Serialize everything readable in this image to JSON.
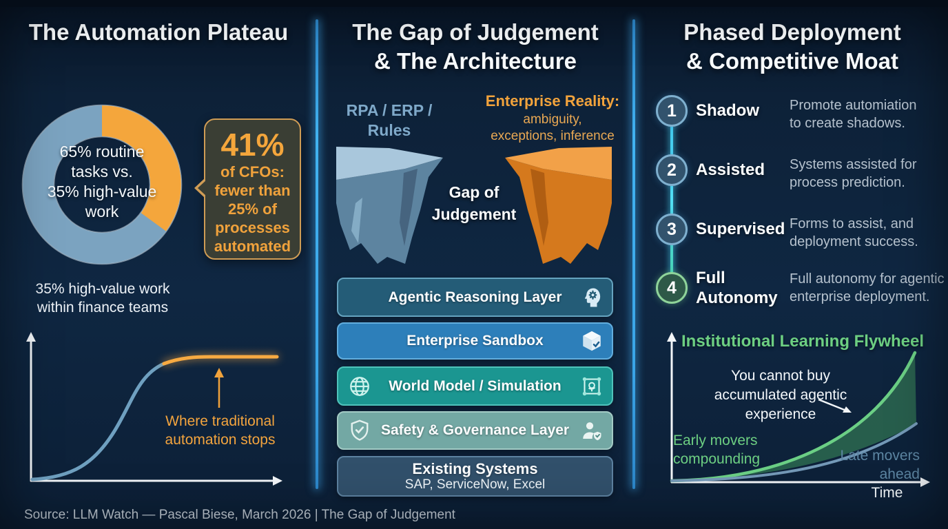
{
  "col1": {
    "title": "The Automation Plateau",
    "donut": {
      "center_label": "65% routine\ntasks vs.\n35% high-value\nwork",
      "caption": "35% high-value work\nwithin finance teams"
    },
    "callout": {
      "big": "41%",
      "rest": "of CFOs:\nfewer than\n25% of\nprocesses\nautomated"
    },
    "scurve_annotation": "Where traditional\nautomation stops"
  },
  "col2": {
    "title": "The Gap of Judgement\n& The Architecture",
    "left_cliff_label": "RPA / ERP /\nRules",
    "right_cliff_title": "Enterprise Reality:",
    "right_cliff_sub": "ambiguity,\nexceptions, inference",
    "gap_label": "Gap of\nJudgement",
    "layers": [
      {
        "label": "Agentic Reasoning Layer",
        "icon_right": "head-gear-icon"
      },
      {
        "label": "Enterprise Sandbox",
        "icon_right": "cube-check-icon"
      },
      {
        "label": "World Model / Simulation",
        "icon_left": "globe-icon",
        "icon_right": "simulation-box-icon"
      },
      {
        "label": "Safety & Governance Layer",
        "icon_left": "shield-check-icon",
        "icon_right": "user-shield-icon"
      },
      {
        "label": "Existing Systems",
        "sub": "SAP, ServiceNow, Excel"
      }
    ]
  },
  "col3": {
    "title": "Phased Deployment\n& Competitive Moat",
    "phases": [
      {
        "num": "1",
        "label": "Shadow",
        "desc": "Promote automiation\nto create shadows."
      },
      {
        "num": "2",
        "label": "Assisted",
        "desc": "Systems assisted for\nprocess prediction."
      },
      {
        "num": "3",
        "label": "Supervised",
        "desc": "Forms to assist, and\ndeployment success."
      },
      {
        "num": "4",
        "label": "Full\nAutonomy",
        "desc": "Full autonomy for agentic\nenterprise deployment."
      }
    ],
    "flywheel": {
      "title": "Institutional Learning Flywheel",
      "annotation": "You cannot buy\naccumulated agentic\nexperience",
      "early_label": "Early movers\ncompounding",
      "late_label": "Late movers\nahead",
      "xlabel": "Time"
    }
  },
  "footer": {
    "source": "Source: LLM Watch — Pascal Biese, March 2026 | The Gap of Judgement"
  },
  "chart_data": [
    {
      "id": "task-split-donut",
      "type": "pie",
      "labels": [
        "Routine tasks",
        "High-value work"
      ],
      "values": [
        65,
        35
      ],
      "colors": [
        "#7ba3c0",
        "#f4a63c"
      ],
      "center_label": "65% routine tasks vs. 35% high-value work",
      "caption": "35% high-value work within finance teams",
      "legend_position": "none"
    },
    {
      "id": "automation-s-curve",
      "type": "line",
      "title": "",
      "xlabel": "",
      "ylabel": "",
      "series": [
        {
          "name": "Automation progress (sigmoid)",
          "color": "#6fa0c0",
          "shape": "s-curve rising then flattening"
        },
        {
          "name": "Plateau where traditional automation stops",
          "color": "#f5a63e",
          "shape": "flat plateau, highlighted"
        }
      ],
      "annotations": [
        "Where traditional automation stops"
      ],
      "grid": false
    },
    {
      "id": "institutional-learning-flywheel",
      "type": "line",
      "title": "Institutional Learning Flywheel",
      "xlabel": "Time",
      "ylabel": "",
      "series": [
        {
          "name": "Early movers compounding",
          "color": "#6bcf85",
          "shape": "steep exponential"
        },
        {
          "name": "Late movers ahead",
          "color": "#7499b7",
          "shape": "shallow exponential"
        }
      ],
      "annotations": [
        "You cannot buy accumulated agentic experience"
      ],
      "fill_between": "#2d6850",
      "grid": false
    }
  ]
}
